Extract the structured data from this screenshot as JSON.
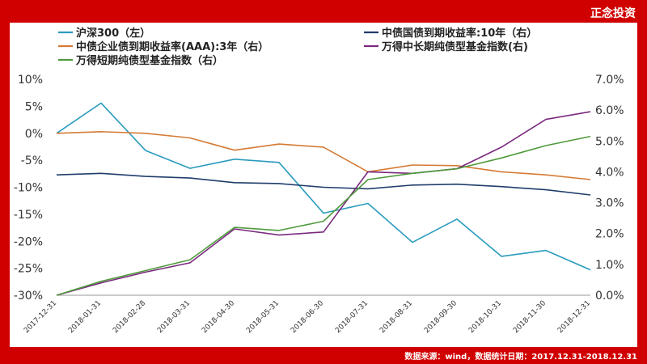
{
  "brand": "正念投资",
  "footer": "数据来源：wind，数据统计日期：2017.12.31-2018.12.31",
  "chart_data": {
    "type": "line",
    "x": [
      "2017-12-31",
      "2018-01-31",
      "2018-02-28",
      "2018-03-31",
      "2018-04-30",
      "2018-05-31",
      "2018-06-30",
      "2018-07-31",
      "2018-08-31",
      "2018-09-30",
      "2018-10-31",
      "2018-11-30",
      "2018-12-31"
    ],
    "left_axis": {
      "ylim": [
        -30,
        10
      ],
      "ticks": [
        "10%",
        "5%",
        "0%",
        "-5%",
        "-10%",
        "-15%",
        "-20%",
        "-25%",
        "-30%"
      ]
    },
    "right_axis": {
      "ylim": [
        0,
        7
      ],
      "ticks": [
        "7.0%",
        "6.0%",
        "5.0%",
        "4.0%",
        "3.0%",
        "2.0%",
        "1.0%",
        "0.0%"
      ]
    },
    "legend_position": "top-left",
    "series": [
      {
        "name": "沪深300（左）",
        "axis": "left",
        "color": "#2a9bbd",
        "values": [
          0,
          5.6,
          -3.2,
          -6.5,
          -4.8,
          -5.4,
          -14.8,
          -13.0,
          -20.2,
          -15.9,
          -22.8,
          -21.7,
          -25.3
        ]
      },
      {
        "name": "中债国债到期收益率:10年（右）",
        "axis": "right",
        "color": "#1f3d6a",
        "values": [
          3.9,
          3.95,
          3.85,
          3.8,
          3.65,
          3.62,
          3.5,
          3.45,
          3.57,
          3.6,
          3.52,
          3.42,
          3.25
        ]
      },
      {
        "name": "中债企业债到期收益率(AAA):3年（右）",
        "axis": "right",
        "color": "#d57b35",
        "values": [
          5.25,
          5.3,
          5.25,
          5.1,
          4.7,
          4.9,
          4.8,
          4.0,
          4.22,
          4.2,
          4.0,
          3.9,
          3.75
        ]
      },
      {
        "name": "万得中长期纯债型基金指数(右)",
        "axis": "right",
        "color": "#7a2a7e",
        "values": [
          0.0,
          0.4,
          0.75,
          1.05,
          2.15,
          1.95,
          2.05,
          4.0,
          3.95,
          4.1,
          4.8,
          5.7,
          5.95
        ]
      },
      {
        "name": "万得短期纯债型基金指数（右）",
        "axis": "right",
        "color": "#4f9a3c",
        "values": [
          0.0,
          0.45,
          0.8,
          1.15,
          2.2,
          2.1,
          2.4,
          3.75,
          3.95,
          4.1,
          4.45,
          4.85,
          5.15
        ]
      }
    ]
  }
}
